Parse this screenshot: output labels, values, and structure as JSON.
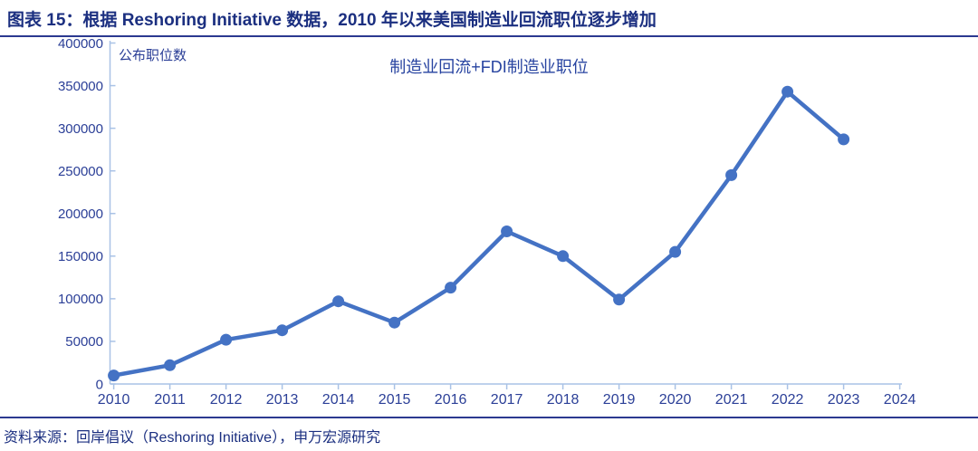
{
  "header": {
    "title": "图表 15：根据 Reshoring Initiative 数据，2010 年以来美国制造业回流职位逐步增加"
  },
  "footer": {
    "source": "资料来源：回岸倡议（Reshoring Initiative），申万宏源研究"
  },
  "chart_data": {
    "type": "line",
    "title": "制造业回流+FDI制造业职位",
    "ylabel": "公布职位数",
    "xlabel": "",
    "categories": [
      2010,
      2011,
      2012,
      2013,
      2014,
      2015,
      2016,
      2017,
      2018,
      2019,
      2020,
      2021,
      2022,
      2023
    ],
    "series": [
      {
        "name": "制造业回流+FDI制造业职位",
        "values": [
          10000,
          22000,
          52000,
          63000,
          97000,
          72000,
          113000,
          179000,
          150000,
          99000,
          155000,
          245000,
          343000,
          287000
        ]
      }
    ],
    "x_tick_labels": [
      "2010",
      "2011",
      "2012",
      "2013",
      "2014",
      "2015",
      "2016",
      "2017",
      "2018",
      "2019",
      "2020",
      "2021",
      "2022",
      "2023",
      "2024"
    ],
    "y_ticks": [
      0,
      50000,
      100000,
      150000,
      200000,
      250000,
      300000,
      350000,
      400000
    ],
    "ylim": [
      0,
      400000
    ],
    "xlim": [
      2010,
      2024
    ],
    "grid": false,
    "legend_position": "none",
    "marker": "circle",
    "colors": {
      "series": "#4472C4",
      "axis": "#A9C2E6",
      "tick_text": "#2B3F97",
      "title_text": "#1B2F80",
      "rule": "#2B3990"
    }
  }
}
